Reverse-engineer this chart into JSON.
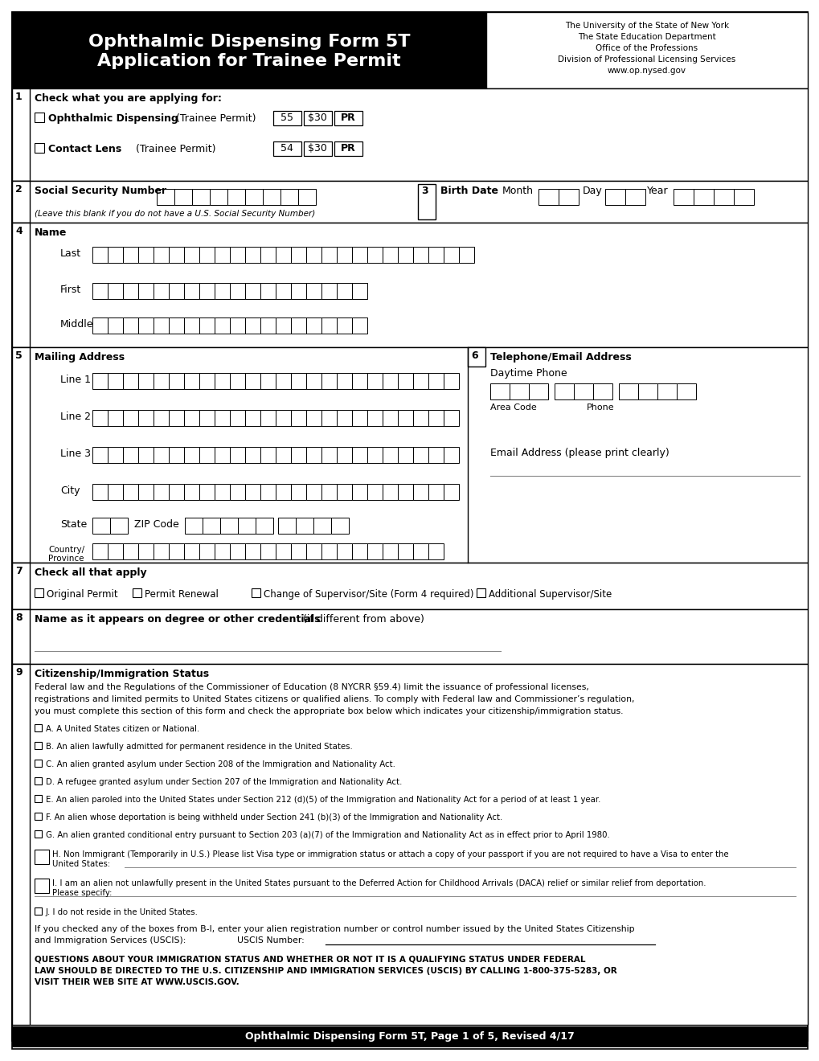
{
  "title_line1": "Ophthalmic Dispensing Form 5T",
  "title_line2": "Application for Trainee Permit",
  "header_right_lines": [
    "The University of the State of New York",
    "The State Education Department",
    "Office of the Professions",
    "Division of Professional Licensing Services",
    "www.op.nysed.gov"
  ],
  "footer_text": "Ophthalmic Dispensing Form 5T, Page 1 of 5, Revised 4/17",
  "section_labels": [
    "1",
    "2",
    "3",
    "4",
    "5",
    "6",
    "7",
    "8",
    "9"
  ],
  "s1_title": "Check what you are applying for:",
  "s2_title": "Social Security Number",
  "s3_title": "Birth Date",
  "s4_title": "Name",
  "s5_title": "Mailing Address",
  "s6_title": "Telephone/Email Address",
  "s7_title": "Check all that apply",
  "s8_title_bold": "Name as it appears on degree or other credentials",
  "s8_title_normal": " (if different from above)",
  "s9_title": "Citizenship/Immigration Status",
  "row1_label": "Ophthalmic Dispensing",
  "row1_normal": " (Trainee Permit)",
  "row1_codes": [
    "55",
    "$30",
    "PR"
  ],
  "row2_label": "Contact Lens",
  "row2_normal": " (Trainee Permit)",
  "row2_codes": [
    "54",
    "$30",
    "PR"
  ],
  "ssn_note": "(Leave this blank if you do not have a U.S. Social Security Number)",
  "name_labels": [
    "Last",
    "First",
    "Middle"
  ],
  "addr_labels": [
    "Line 1",
    "Line 2",
    "Line 3",
    "City"
  ],
  "phone_labels": [
    "Area Code",
    "Phone"
  ],
  "daytime_phone": "Daytime Phone",
  "email_label": "Email Address (please print clearly)",
  "state_label": "State",
  "zip_label": "ZIP Code",
  "country_label": "Country/\nProvince",
  "check7_items": [
    "Original Permit",
    "Permit Renewal",
    "Change of Supervisor/Site (Form 4 required)",
    "Additional Supervisor/Site"
  ],
  "s9_body": [
    "Federal law and the Regulations of the Commissioner of Education (8 NYCRR §59.4) limit the issuance of professional licenses,",
    "registrations and limited permits to United States citizens or qualified aliens. To comply with Federal law and Commissioner’s regulation,",
    "you must complete this section of this form and check the appropriate box below which indicates your citizenship/immigration status."
  ],
  "citizenship_options": [
    "A. A United States citizen or National.",
    "B. An alien lawfully admitted for permanent residence in the United States.",
    "C. An alien granted asylum under Section 208 of the Immigration and Nationality Act.",
    "D. A refugee granted asylum under Section 207 of the Immigration and Nationality Act.",
    "E. An alien paroled into the United States under Section 212 (d)(5) of the Immigration and Nationality Act for a period of at least 1 year.",
    "F. An alien whose deportation is being withheld under Section 241 (b)(3) of the Immigration and Nationality Act.",
    "G. An alien granted conditional entry pursuant to Section 203 (a)(7) of the Immigration and Nationality Act as in effect prior to April 1980."
  ],
  "opt_H_line1": "H. Non Immigrant (Temporarily in U.S.) Please list Visa type or immigration status or attach a copy of your passport if you are not required to have a Visa to enter the",
  "opt_H_line2": "United States:",
  "opt_I_line1": "I. I am an alien not unlawfully present in the United States pursuant to the Deferred Action for Childhood Arrivals (DACA) relief or similar relief from deportation.",
  "opt_I_line2": "Please specify:",
  "opt_J": "J. I do not reside in the United States.",
  "uscis_line1": "If you checked any of the boxes from B-I, enter your alien registration number or control number issued by the United States Citizenship",
  "uscis_line2": "and Immigration Services (USCIS):",
  "uscis_number": "USCIS Number:",
  "warning": [
    "QUESTIONS ABOUT YOUR IMMIGRATION STATUS AND WHETHER OR NOT IT IS A QUALIFYING STATUS UNDER FEDERAL",
    "LAW SHOULD BE DIRECTED TO THE U.S. CITIZENSHIP AND IMMIGRATION SERVICES (USCIS) BY CALLING 1-800-375-5283, OR",
    "VISIT THEIR WEB SITE AT WWW.USCIS.GOV."
  ]
}
